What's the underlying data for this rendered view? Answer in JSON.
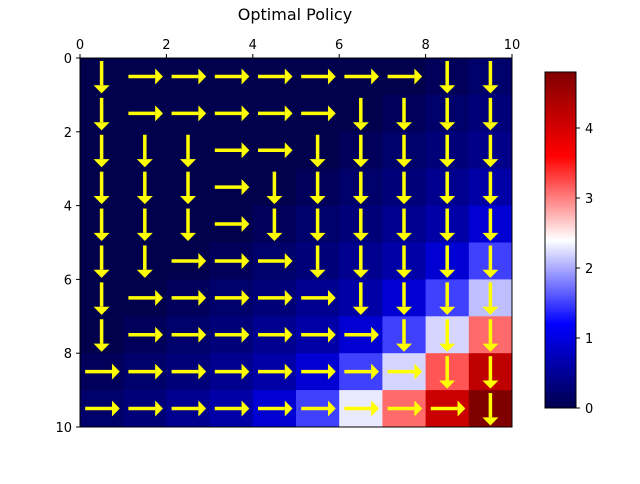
{
  "chart_data": {
    "type": "heatmap",
    "title": "Optimal Policy",
    "x_axis": {
      "position": "top",
      "range": [
        0,
        10
      ],
      "ticks": [
        0,
        2,
        4,
        6,
        8,
        10
      ]
    },
    "y_axis": {
      "range": [
        0,
        10
      ],
      "inverted": true,
      "ticks": [
        0,
        2,
        4,
        6,
        8,
        10
      ]
    },
    "colormap": "seismic",
    "value_range": [
      0,
      4.8
    ],
    "colorbar": {
      "ticks": [
        0,
        1,
        2,
        3,
        4
      ],
      "placement": "right"
    },
    "values": [
      [
        0.0,
        0.0,
        0.0,
        0.0,
        0.0,
        0.0,
        0.0,
        0.0,
        0.1,
        0.2
      ],
      [
        0.0,
        0.0,
        0.0,
        0.0,
        0.0,
        0.0,
        0.0,
        0.1,
        0.2,
        0.3
      ],
      [
        0.0,
        0.0,
        0.0,
        0.0,
        0.0,
        0.0,
        0.1,
        0.2,
        0.3,
        0.4
      ],
      [
        0.0,
        0.0,
        0.0,
        0.0,
        0.0,
        0.1,
        0.2,
        0.3,
        0.45,
        0.6
      ],
      [
        0.0,
        0.0,
        0.0,
        0.0,
        0.1,
        0.2,
        0.3,
        0.45,
        0.6,
        0.9
      ],
      [
        0.0,
        0.0,
        0.0,
        0.1,
        0.2,
        0.3,
        0.45,
        0.6,
        0.9,
        1.5
      ],
      [
        0.0,
        0.0,
        0.1,
        0.2,
        0.3,
        0.45,
        0.6,
        0.9,
        1.5,
        2.1
      ],
      [
        0.0,
        0.1,
        0.2,
        0.3,
        0.45,
        0.6,
        0.9,
        1.5,
        2.2,
        3.1
      ],
      [
        0.1,
        0.2,
        0.3,
        0.45,
        0.6,
        0.9,
        1.5,
        2.2,
        3.2,
        4.2
      ],
      [
        0.2,
        0.3,
        0.45,
        0.6,
        0.9,
        1.5,
        2.3,
        3.1,
        4.1,
        4.8
      ]
    ],
    "arrow_color": "#ffff00",
    "policy": [
      [
        "down",
        "right",
        "right",
        "right",
        "right",
        "right",
        "right",
        "right",
        "down",
        "down"
      ],
      [
        "down",
        "right",
        "right",
        "right",
        "right",
        "right",
        "down",
        "down",
        "down",
        "down"
      ],
      [
        "down",
        "down",
        "down",
        "right",
        "right",
        "down",
        "down",
        "down",
        "down",
        "down"
      ],
      [
        "down",
        "down",
        "down",
        "right",
        "down",
        "down",
        "down",
        "down",
        "down",
        "down"
      ],
      [
        "down",
        "down",
        "down",
        "right",
        "down",
        "down",
        "down",
        "down",
        "down",
        "down"
      ],
      [
        "down",
        "down",
        "right",
        "right",
        "right",
        "down",
        "down",
        "down",
        "down",
        "down"
      ],
      [
        "down",
        "right",
        "right",
        "right",
        "right",
        "right",
        "down",
        "down",
        "down",
        "down"
      ],
      [
        "down",
        "right",
        "right",
        "right",
        "right",
        "right",
        "right",
        "down",
        "down",
        "down"
      ],
      [
        "right",
        "right",
        "right",
        "right",
        "right",
        "right",
        "right",
        "right",
        "down",
        "down"
      ],
      [
        "right",
        "right",
        "right",
        "right",
        "right",
        "right",
        "right",
        "right",
        "right",
        "down"
      ]
    ]
  }
}
